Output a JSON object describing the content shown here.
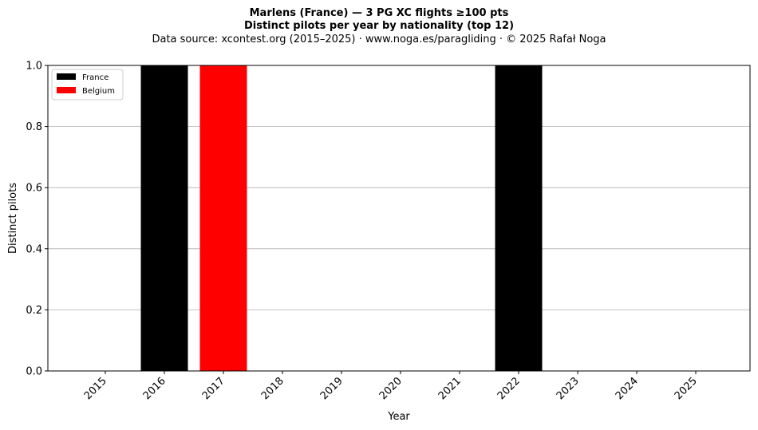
{
  "chart_data": {
    "type": "bar",
    "title": "Marlens (France)  —  3 PG XC flights ≥100 pts",
    "subtitle": "Distinct pilots per year by nationality (top 12)",
    "source_line": "Data source: xcontest.org (2015–2025)  ·  www.noga.es/paragliding  ·  © 2025 Rafał Noga",
    "xlabel": "Year",
    "ylabel": "Distinct pilots",
    "categories": [
      "2015",
      "2016",
      "2017",
      "2018",
      "2019",
      "2020",
      "2021",
      "2022",
      "2023",
      "2024",
      "2025"
    ],
    "series": [
      {
        "name": "France",
        "color": "#000000",
        "values": [
          0,
          1,
          0,
          0,
          0,
          0,
          0,
          1,
          0,
          0,
          0
        ]
      },
      {
        "name": "Belgium",
        "color": "#ff0000",
        "values": [
          0,
          0,
          1,
          0,
          0,
          0,
          0,
          0,
          0,
          0,
          0
        ]
      }
    ],
    "ylim": [
      0,
      1.0
    ],
    "yticks": [
      "0.0",
      "0.2",
      "0.4",
      "0.6",
      "0.8",
      "1.0"
    ],
    "grid": "y",
    "legend_position": "upper-left",
    "stacked": true
  }
}
